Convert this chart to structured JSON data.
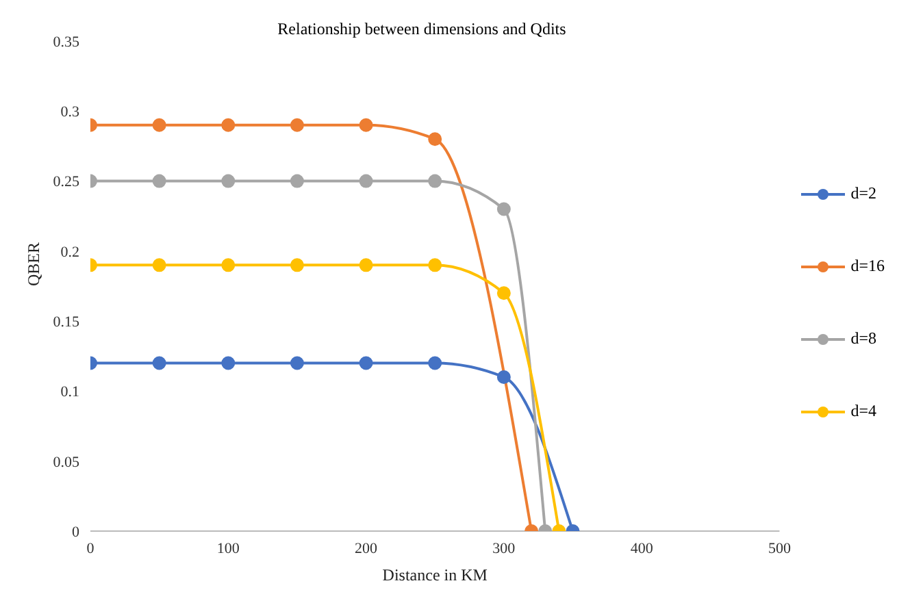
{
  "chart_data": {
    "type": "line",
    "title": "Relationship between dimensions and Qdits",
    "xlabel": "Distance in KM",
    "ylabel": "QBER",
    "xlim": [
      0,
      500
    ],
    "xticks": [
      0,
      100,
      200,
      300,
      400,
      500
    ],
    "ylim": [
      0,
      0.35
    ],
    "yticks": [
      0,
      0.05,
      0.1,
      0.15,
      0.2,
      0.25,
      0.3,
      0.35
    ],
    "series": [
      {
        "name": "d=2",
        "color": "#4472c4",
        "x": [
          0,
          50,
          100,
          150,
          200,
          250,
          300,
          350
        ],
        "values": [
          0.12,
          0.12,
          0.12,
          0.12,
          0.12,
          0.12,
          0.11,
          0
        ]
      },
      {
        "name": "d=16",
        "color": "#ed7d31",
        "x": [
          0,
          50,
          100,
          150,
          200,
          250,
          320
        ],
        "values": [
          0.29,
          0.29,
          0.29,
          0.29,
          0.29,
          0.28,
          0
        ]
      },
      {
        "name": "d=8",
        "color": "#a5a5a5",
        "x": [
          0,
          50,
          100,
          150,
          200,
          250,
          300,
          330
        ],
        "values": [
          0.25,
          0.25,
          0.25,
          0.25,
          0.25,
          0.25,
          0.23,
          0
        ]
      },
      {
        "name": "d=4",
        "color": "#ffc000",
        "x": [
          0,
          50,
          100,
          150,
          200,
          250,
          300,
          340
        ],
        "values": [
          0.19,
          0.19,
          0.19,
          0.19,
          0.19,
          0.19,
          0.17,
          0
        ]
      }
    ],
    "grid": false,
    "legend": "right",
    "marker": "circle",
    "line_style": "solid"
  }
}
